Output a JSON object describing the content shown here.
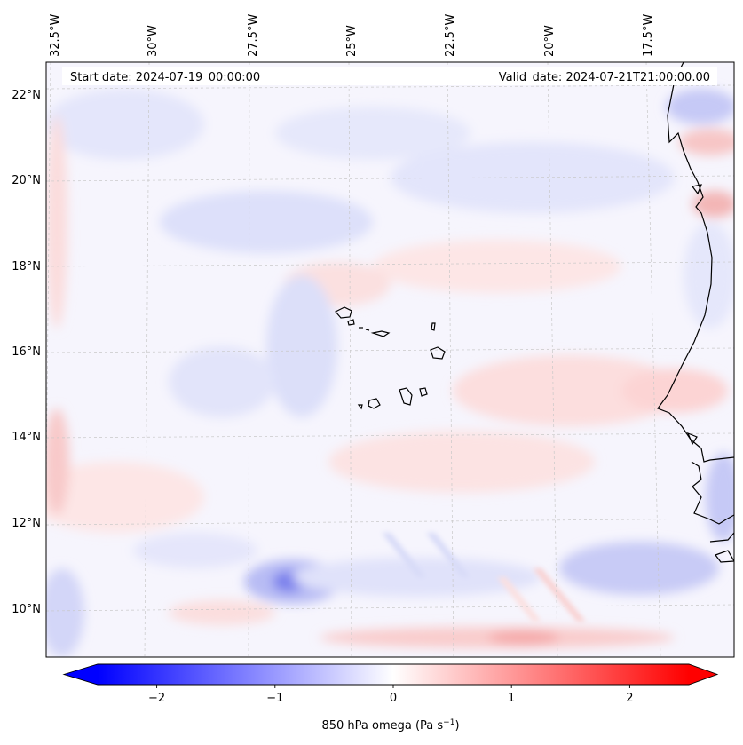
{
  "map": {
    "header": {
      "start_date": "Start date: 2024-07-19_00:00:00",
      "valid_date": "Valid_date: 2024-07-21T21:00:00.00"
    },
    "lon_labels": [
      "32.5°W",
      "30°W",
      "27.5°W",
      "25°W",
      "22.5°W",
      "20°W",
      "17.5°W"
    ],
    "lat_labels": [
      "22°N",
      "20°N",
      "18°N",
      "16°N",
      "14°N",
      "12°N",
      "10°N"
    ],
    "extent": {
      "lon_min": -32.6,
      "lon_max": -15.7,
      "lat_min": 8.9,
      "lat_max": 22.8
    },
    "colorbar": {
      "label_prefix": "850 hPa omega (Pa s",
      "label_exp": "−1",
      "label_suffix": ")",
      "ticks": [
        "−2",
        "−1",
        "0",
        "1",
        "2"
      ],
      "tick_values": [
        -2,
        -1,
        0,
        1,
        2
      ],
      "range": [
        -2.5,
        2.5
      ],
      "colors": {
        "low": "#0000ff",
        "mid": "#ffffff",
        "high": "#ff0000"
      }
    }
  }
}
